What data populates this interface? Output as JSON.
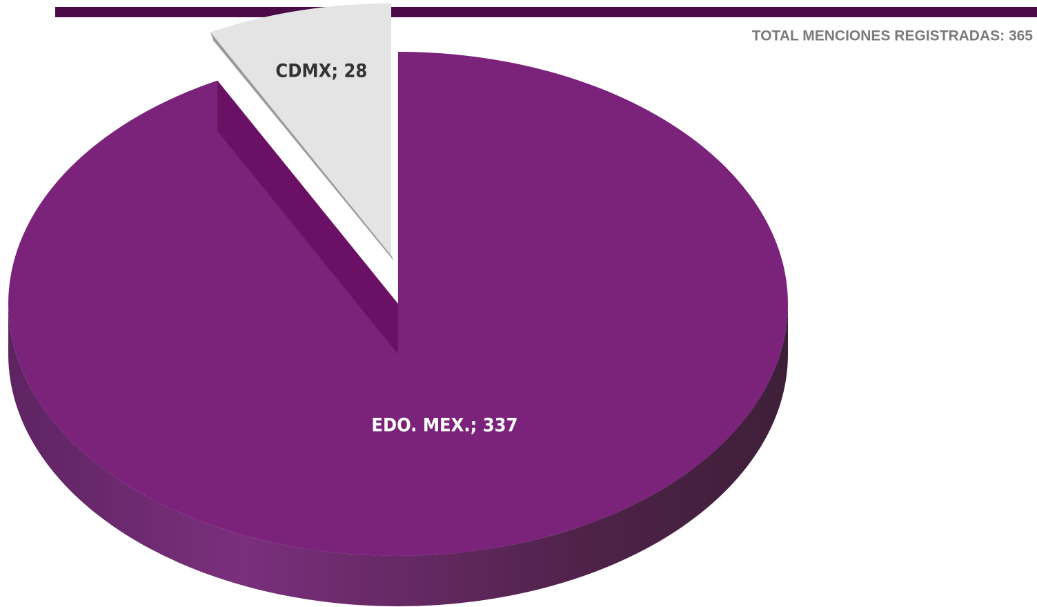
{
  "chart_data": {
    "type": "pie",
    "annotation": "TOTAL MENCIONES REGISTRADAS: 365",
    "values": [
      337,
      28
    ],
    "value_labels": [
      "EDO. MEX.; 337",
      "CDMX; 28"
    ],
    "colors": [
      "#7b237b",
      "#e4e4e4"
    ],
    "label_colors": [
      "#ffffff",
      "#333333"
    ]
  }
}
